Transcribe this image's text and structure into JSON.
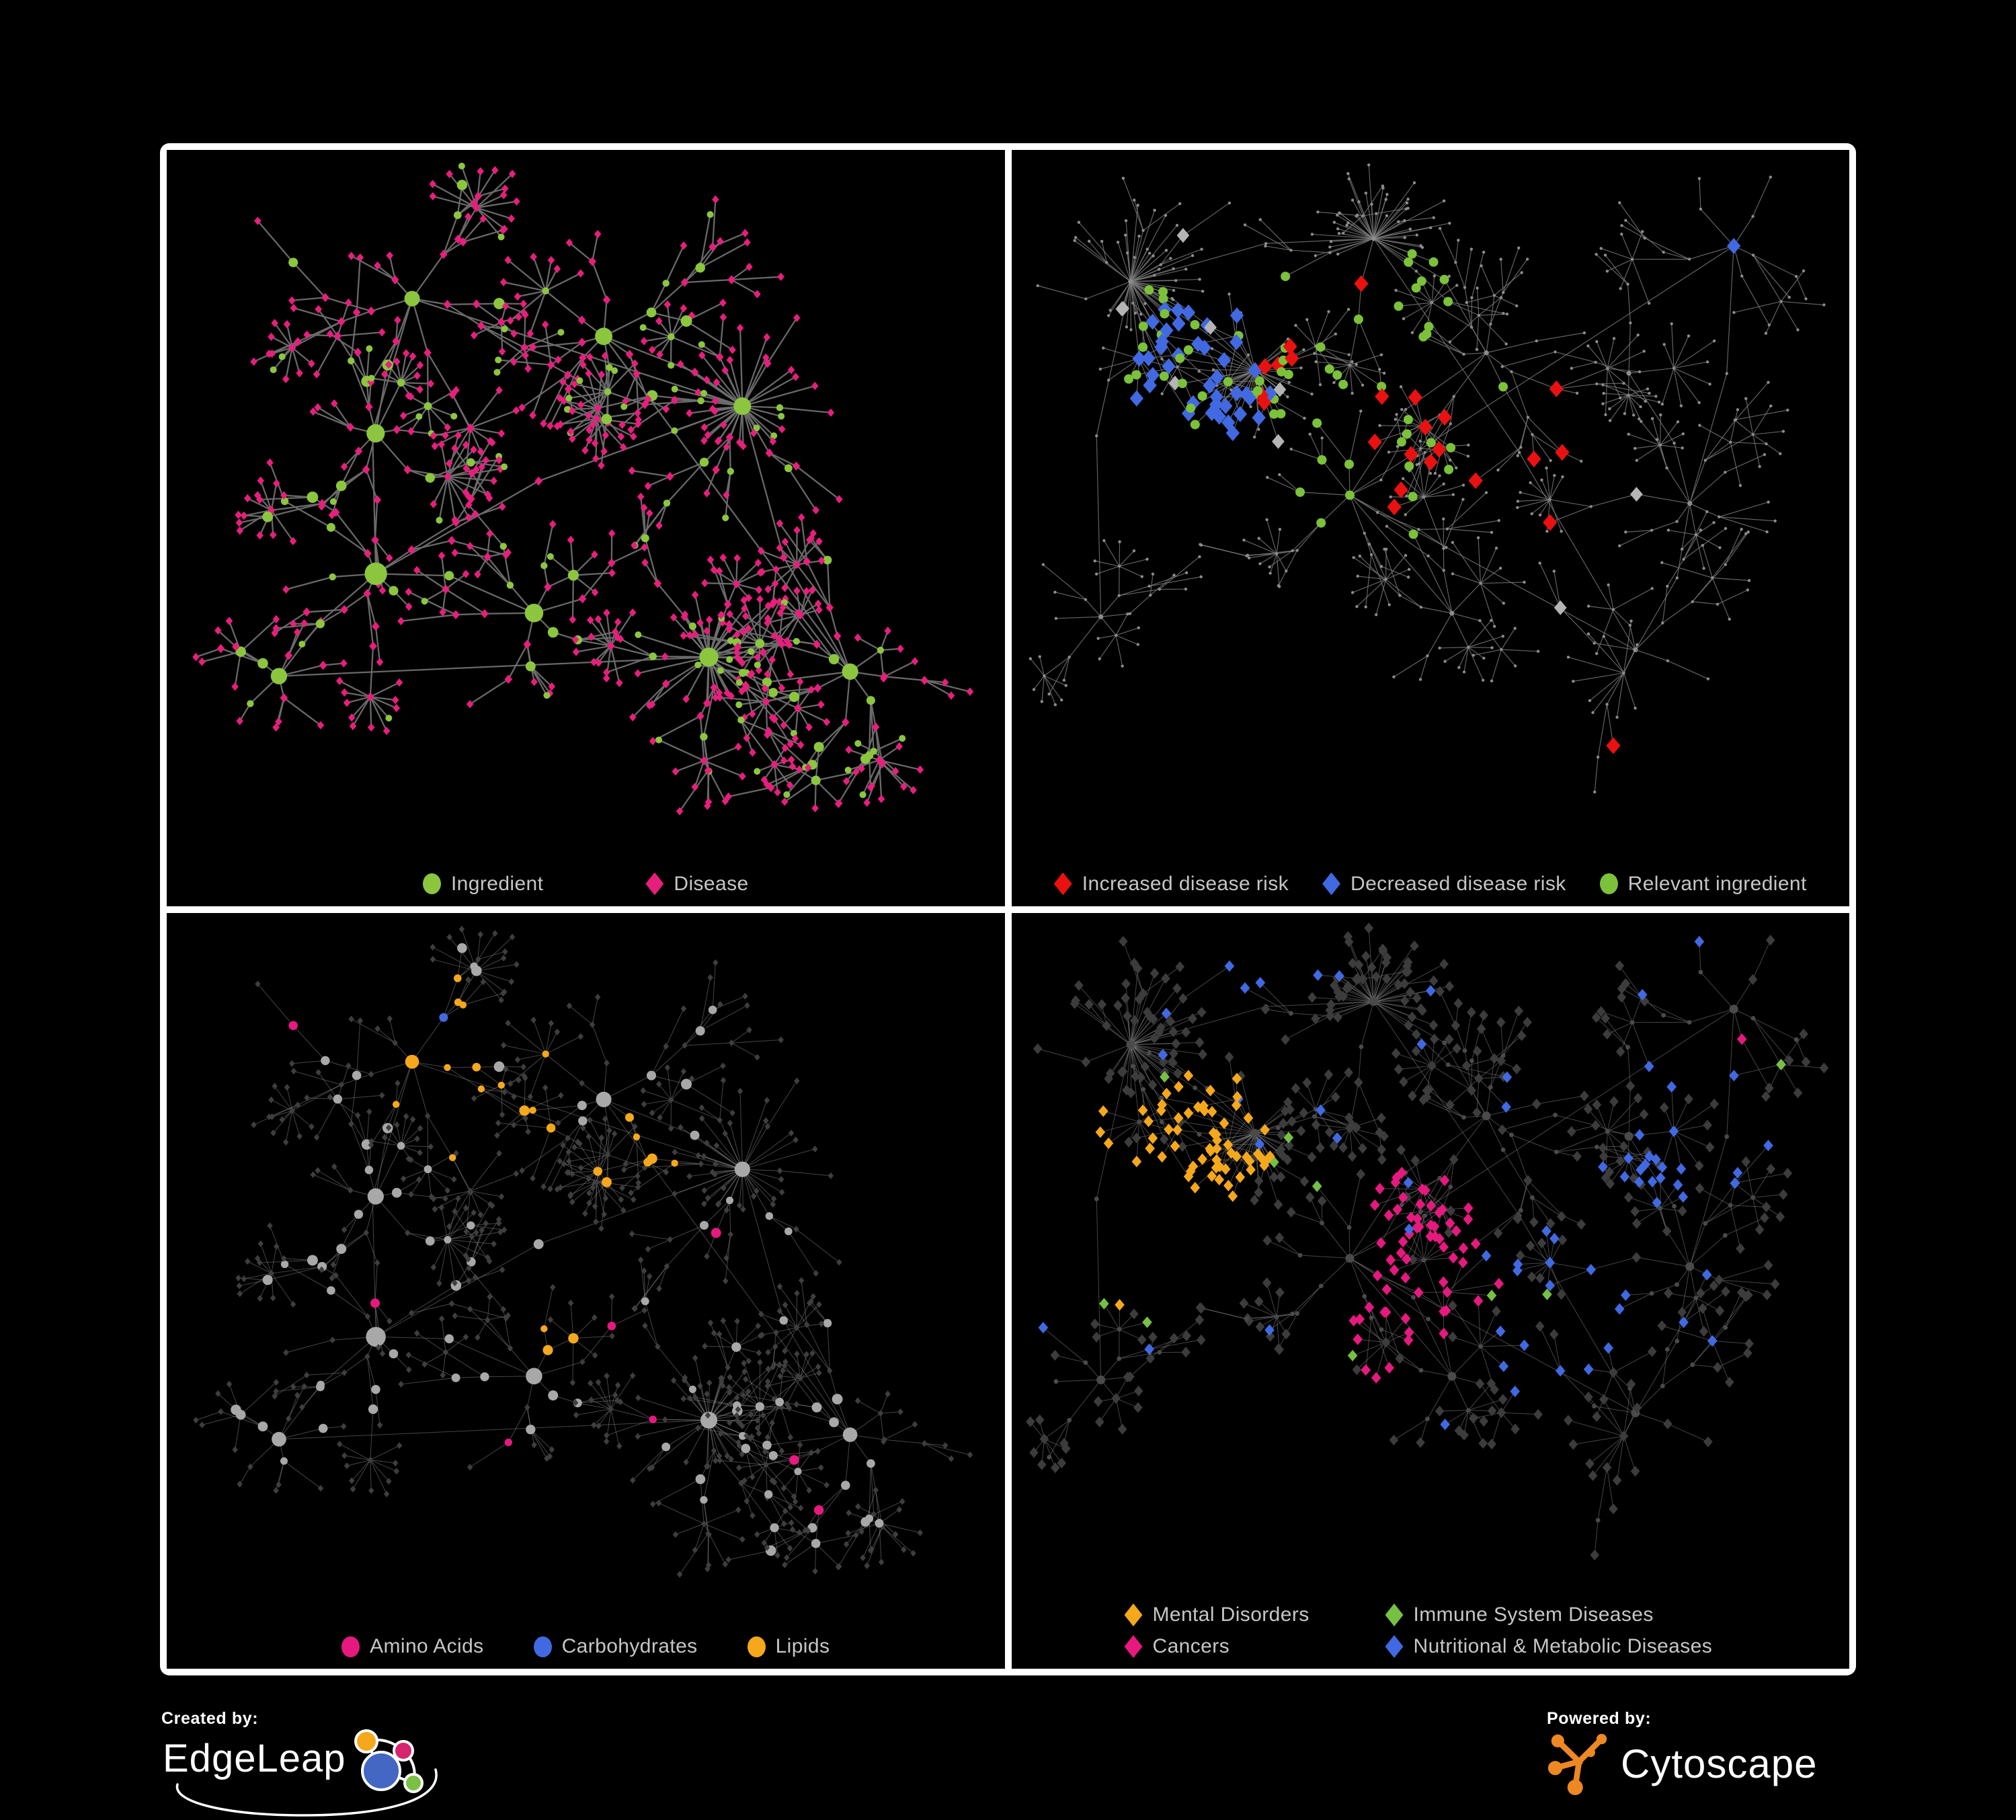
{
  "canvas": {
    "bg": "#000000",
    "frame_color": "#ffffff"
  },
  "footer": {
    "created_by": "Created by:",
    "brand_left": "EdgeLeap",
    "powered_by": "Powered by:",
    "brand_right": "Cytoscape",
    "cytoscape_orange": "#EE8822",
    "edgeleap_colors": {
      "blue": "#4467C4",
      "orange": "#F5A81C",
      "magenta": "#D6246E",
      "green": "#7AC143"
    }
  },
  "panels": [
    {
      "id": "ingredient-disease",
      "legend_rows": [
        [
          {
            "label": "Ingredient",
            "shape": "circle",
            "color": "#8CC63E"
          },
          {
            "label": "Disease",
            "shape": "diamond",
            "color": "#E81E7D"
          }
        ]
      ],
      "net": {
        "seed": 20,
        "hubs": 9,
        "branches": [
          4,
          7
        ],
        "depth": 3,
        "stars": 7,
        "mega": 2,
        "burstP": 0.3,
        "edge": {
          "color": "#6E6E6E",
          "width": 2.3,
          "opacity": 0.95
        },
        "green": "#8CC63E",
        "pink": "#E81E7D"
      }
    },
    {
      "id": "disease-risk",
      "legend_rows": [
        [
          {
            "label": "Increased disease risk",
            "shape": "diamond",
            "color": "#EA1111"
          },
          {
            "label": "Decreased disease risk",
            "shape": "diamond",
            "color": "#4169E1"
          },
          {
            "label": "Relevant ingredient",
            "shape": "circle",
            "color": "#7CC13A"
          }
        ]
      ],
      "net": {
        "seed": 77,
        "hubs": 11,
        "branches": [
          4,
          8
        ],
        "depth": 3,
        "stars": 10,
        "mega": 3,
        "burstP": 0.36,
        "edge": {
          "color": "#7A7A7A",
          "width": 1.2,
          "opacity": 0.8
        },
        "dot": "#8C8C8C",
        "red": {
          "color": "#EA1111",
          "p": 0.16,
          "foci": [
            [
              0.44,
              0.32,
              0.15
            ],
            [
              0.63,
              0.4,
              0.1
            ],
            [
              0.71,
              0.83,
              0.06
            ]
          ]
        },
        "blue": {
          "color": "#4169E1",
          "p": 0.42,
          "foci": [
            [
              0.23,
              0.3,
              0.09
            ],
            [
              0.85,
              0.17,
              0.04
            ]
          ]
        },
        "grayd": {
          "color": "#B5B5B5",
          "p": 0.012
        },
        "green": {
          "color": "#7CC13A",
          "p": 0.24,
          "foci": [
            [
              0.4,
              0.33,
              0.19
            ],
            [
              0.2,
              0.28,
              0.1
            ]
          ]
        }
      }
    },
    {
      "id": "ingredient-classes",
      "legend_rows": [
        [
          {
            "label": "Amino Acids",
            "shape": "circle",
            "color": "#E6197F"
          },
          {
            "label": "Carbohydrates",
            "shape": "circle",
            "color": "#4169E1"
          },
          {
            "label": "Lipids",
            "shape": "circle",
            "color": "#F5A81C"
          }
        ]
      ],
      "net": {
        "seed": 20,
        "hubs": 9,
        "branches": [
          4,
          7
        ],
        "depth": 3,
        "stars": 7,
        "mega": 2,
        "burstP": 0.3,
        "edge": {
          "color": "#9A9A9A",
          "width": 1.0,
          "opacity": 0.45
        },
        "circle": "#A8A8A8",
        "diamond": "#3E3E3E",
        "orange": {
          "color": "#F5A81C",
          "foci": [
            [
              0.37,
              0.21,
              0.115
            ],
            [
              0.56,
              0.34,
              0.07
            ],
            [
              0.49,
              0.56,
              0.05
            ]
          ]
        },
        "blue": {
          "color": "#4468DF",
          "foci": [
            [
              0.37,
              0.21,
              0.12
            ]
          ]
        },
        "pink": {
          "color": "#E6197F"
        }
      }
    },
    {
      "id": "disease-classes",
      "legend_rows": [
        [
          {
            "label": "Mental Disorders",
            "shape": "diamond",
            "color": "#F5A81C"
          },
          {
            "label": "Immune System Diseases",
            "shape": "diamond",
            "color": "#76C043"
          }
        ],
        [
          {
            "label": "Cancers",
            "shape": "diamond",
            "color": "#E6197F"
          },
          {
            "label": "Nutritional & Metabolic Diseases",
            "shape": "diamond",
            "color": "#4169E1"
          }
        ]
      ],
      "net": {
        "seed": 77,
        "hubs": 11,
        "branches": [
          4,
          8
        ],
        "depth": 3,
        "stars": 10,
        "mega": 3,
        "burstP": 0.36,
        "edge": {
          "color": "#8A8A8A",
          "width": 1.0,
          "opacity": 0.5
        },
        "circle": "#4A4A4A",
        "diamond": "#3C3C3C",
        "orange": {
          "color": "#F5A81C",
          "foci": [
            [
              0.15,
              0.4,
              0.125
            ],
            [
              0.24,
              0.3,
              0.075
            ]
          ]
        },
        "pinkc": {
          "color": "#E6197F",
          "foci": [
            [
              0.5,
              0.46,
              0.105
            ],
            [
              0.43,
              0.58,
              0.065
            ],
            [
              0.87,
              0.17,
              0.045
            ]
          ]
        },
        "bluec": {
          "color": "#4169E1",
          "foci": [
            [
              0.65,
              0.54,
              0.095
            ],
            [
              0.8,
              0.3,
              0.095
            ],
            [
              0.3,
              0.07,
              0.07
            ]
          ]
        },
        "greenc": {
          "color": "#76C043"
        }
      }
    }
  ]
}
